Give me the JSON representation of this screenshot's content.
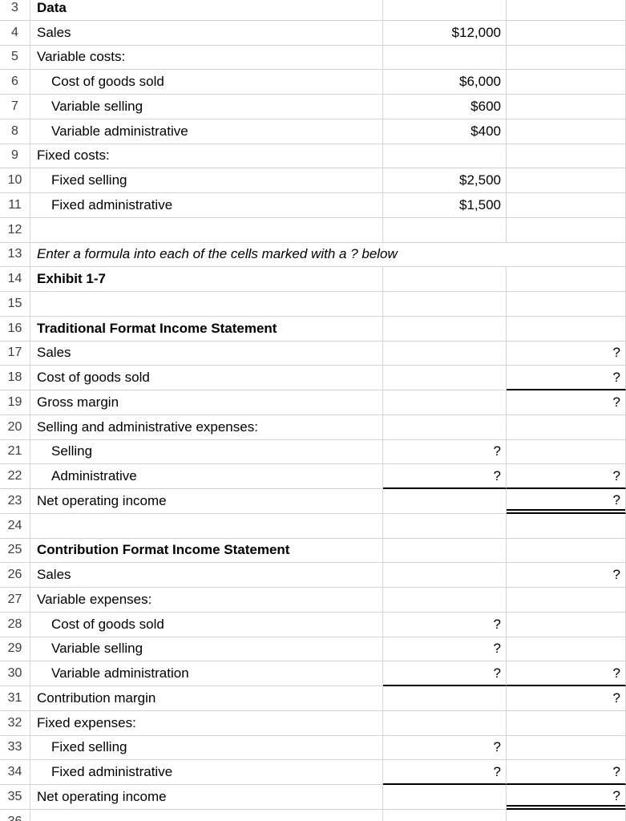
{
  "sheet": {
    "rows": [
      {
        "num": "3",
        "a": "Data",
        "bold": true
      },
      {
        "num": "4",
        "a": "Sales",
        "b": "$12,000"
      },
      {
        "num": "5",
        "a": "Variable costs:"
      },
      {
        "num": "6",
        "a": "Cost of goods sold",
        "indent": true,
        "b": "$6,000"
      },
      {
        "num": "7",
        "a": "Variable selling",
        "indent": true,
        "b": "$600"
      },
      {
        "num": "8",
        "a": "Variable administrative",
        "indent": true,
        "b": "$400"
      },
      {
        "num": "9",
        "a": "Fixed costs:"
      },
      {
        "num": "10",
        "a": "Fixed selling",
        "indent": true,
        "b": "$2,500"
      },
      {
        "num": "11",
        "a": "Fixed administrative",
        "indent": true,
        "b": "$1,500"
      },
      {
        "num": "12"
      },
      {
        "num": "13",
        "a": "Enter a formula into each of the cells marked with a ? below",
        "italic": true,
        "span": true
      },
      {
        "num": "14",
        "a": "Exhibit 1-7",
        "bold": true
      },
      {
        "num": "15"
      },
      {
        "num": "16",
        "a": "Traditional Format Income Statement",
        "bold": true
      },
      {
        "num": "17",
        "a": "Sales",
        "c": "?"
      },
      {
        "num": "18",
        "a": "Cost of goods sold",
        "c": "?",
        "border_c": "single"
      },
      {
        "num": "19",
        "a": "Gross margin",
        "c": "?"
      },
      {
        "num": "20",
        "a": "Selling and administrative expenses:"
      },
      {
        "num": "21",
        "a": "Selling",
        "indent": true,
        "b": "?"
      },
      {
        "num": "22",
        "a": "Administrative",
        "indent": true,
        "b": "?",
        "c": "?",
        "border_b": "single",
        "border_c": "single"
      },
      {
        "num": "23",
        "a": "Net operating income",
        "c": "?",
        "border_c": "double"
      },
      {
        "num": "24"
      },
      {
        "num": "25",
        "a": "Contribution Format Income Statement",
        "bold": true
      },
      {
        "num": "26",
        "a": "Sales",
        "c": "?"
      },
      {
        "num": "27",
        "a": "Variable expenses:"
      },
      {
        "num": "28",
        "a": "Cost of goods sold",
        "indent": true,
        "b": "?"
      },
      {
        "num": "29",
        "a": "Variable selling",
        "indent": true,
        "b": "?"
      },
      {
        "num": "30",
        "a": "Variable administration",
        "indent": true,
        "b": "?",
        "c": "?",
        "border_b": "single",
        "border_c": "single"
      },
      {
        "num": "31",
        "a": "Contribution margin",
        "c": "?"
      },
      {
        "num": "32",
        "a": "Fixed expenses:"
      },
      {
        "num": "33",
        "a": "Fixed selling",
        "indent": true,
        "b": "?"
      },
      {
        "num": "34",
        "a": "Fixed administrative",
        "indent": true,
        "b": "?",
        "c": "?",
        "border_b": "single",
        "border_c": "single"
      },
      {
        "num": "35",
        "a": "Net operating income",
        "c": "?",
        "border_c": "double"
      },
      {
        "num": "36"
      }
    ]
  }
}
